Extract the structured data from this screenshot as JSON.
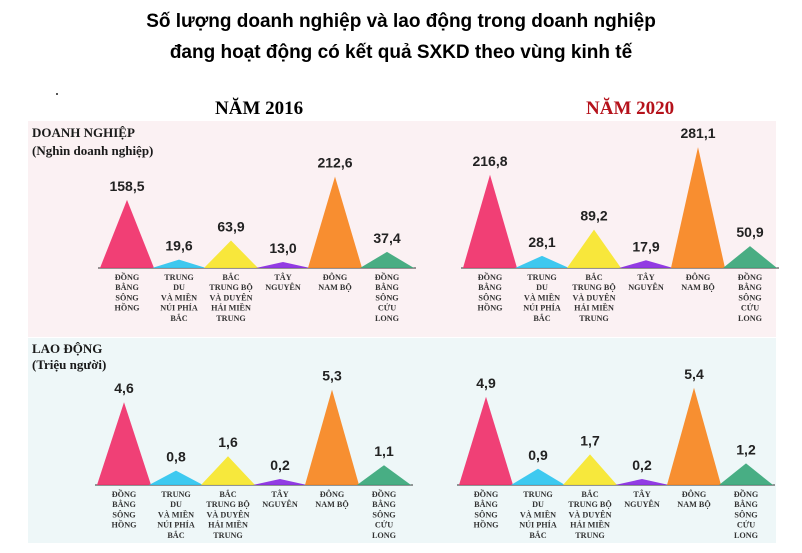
{
  "title": {
    "line1": "Số lượng doanh nghiệp và lao động trong doanh nghiệp",
    "line2": "đang hoạt động có kết quả SXKD theo vùng kinh tế"
  },
  "years": {
    "left": "NĂM 2016",
    "right": "NĂM 2020"
  },
  "sections": {
    "top": {
      "label": "DOANH NGHIỆP",
      "unit": "(Nghìn doanh nghiệp)"
    },
    "bottom": {
      "label": "LAO ĐỘNG",
      "unit": "(Triệu người)"
    }
  },
  "colors": [
    "#f0306a",
    "#2ec4ef",
    "#f7e62b",
    "#8a2be2",
    "#f7861f",
    "#3aa77a"
  ],
  "chart_data": [
    {
      "type": "bar",
      "title": "DOANH NGHIỆP (Nghìn doanh nghiệp) - NĂM 2016",
      "categories": [
        [
          "ĐỒNG",
          "BẰNG",
          "SÔNG",
          "HỒNG"
        ],
        [
          "TRUNG",
          "DU",
          "VÀ MIỀN",
          "NÚI PHÍA",
          "BẮC"
        ],
        [
          "BẮC",
          "TRUNG BỘ",
          "VÀ DUYÊN",
          "HẢI MIỀN",
          "TRUNG"
        ],
        [
          "TÂY",
          "NGUYÊN"
        ],
        [
          "ĐÔNG",
          "NAM BỘ"
        ],
        [
          "ĐỒNG",
          "BẰNG",
          "SÔNG",
          "CỬU",
          "LONG"
        ]
      ],
      "values": [
        158.5,
        19.6,
        63.9,
        13.0,
        212.6,
        37.4
      ],
      "labels": [
        "158,5",
        "19,6",
        "63,9",
        "13,0",
        "212,6",
        "37,4"
      ]
    },
    {
      "type": "bar",
      "title": "DOANH NGHIỆP (Nghìn doanh nghiệp) - NĂM 2020",
      "categories": [
        [
          "ĐỒNG",
          "BẰNG",
          "SÔNG",
          "HỒNG"
        ],
        [
          "TRUNG",
          "DU",
          "VÀ MIỀN",
          "NÚI PHÍA",
          "BẮC"
        ],
        [
          "BẮC",
          "TRUNG BỘ",
          "VÀ DUYÊN",
          "HẢI MIỀN",
          "TRUNG"
        ],
        [
          "TÂY",
          "NGUYÊN"
        ],
        [
          "ĐÔNG",
          "NAM BỘ"
        ],
        [
          "ĐỒNG",
          "BẰNG",
          "SÔNG",
          "CỬU",
          "LONG"
        ]
      ],
      "values": [
        216.8,
        28.1,
        89.2,
        17.9,
        281.1,
        50.9
      ],
      "labels": [
        "216,8",
        "28,1",
        "89,2",
        "17,9",
        "281,1",
        "50,9"
      ]
    },
    {
      "type": "bar",
      "title": "LAO ĐỘNG (Triệu người) - NĂM 2016",
      "categories": [
        [
          "ĐỒNG",
          "BẰNG",
          "SÔNG",
          "HỒNG"
        ],
        [
          "TRUNG",
          "DU",
          "VÀ MIỀN",
          "NÚI PHÍA",
          "BẮC"
        ],
        [
          "BẮC",
          "TRUNG BỘ",
          "VÀ DUYÊN",
          "HẢI MIỀN",
          "TRUNG"
        ],
        [
          "TÂY",
          "NGUYÊN"
        ],
        [
          "ĐÔNG",
          "NAM BỘ"
        ],
        [
          "ĐỒNG",
          "BẰNG",
          "SÔNG",
          "CỬU",
          "LONG"
        ]
      ],
      "values": [
        4.6,
        0.8,
        1.6,
        0.2,
        5.3,
        1.1
      ],
      "labels": [
        "4,6",
        "0,8",
        "1,6",
        "0,2",
        "5,3",
        "1,1"
      ]
    },
    {
      "type": "bar",
      "title": "LAO ĐỘNG (Triệu người) - NĂM 2020",
      "categories": [
        [
          "ĐỒNG",
          "BẰNG",
          "SÔNG",
          "HỒNG"
        ],
        [
          "TRUNG",
          "DU",
          "VÀ MIỀN",
          "NÚI PHÍA",
          "BẮC"
        ],
        [
          "BẮC",
          "TRUNG BỘ",
          "VÀ DUYÊN",
          "HẢI MIỀN",
          "TRUNG"
        ],
        [
          "TÂY",
          "NGUYÊN"
        ],
        [
          "ĐÔNG",
          "NAM BỘ"
        ],
        [
          "ĐỒNG",
          "BẰNG",
          "SÔNG",
          "CỬU",
          "LONG"
        ]
      ],
      "values": [
        4.9,
        0.9,
        1.7,
        0.2,
        5.4,
        1.2
      ],
      "labels": [
        "4,9",
        "0,9",
        "1,7",
        "0,2",
        "5,4",
        "1,2"
      ]
    }
  ]
}
